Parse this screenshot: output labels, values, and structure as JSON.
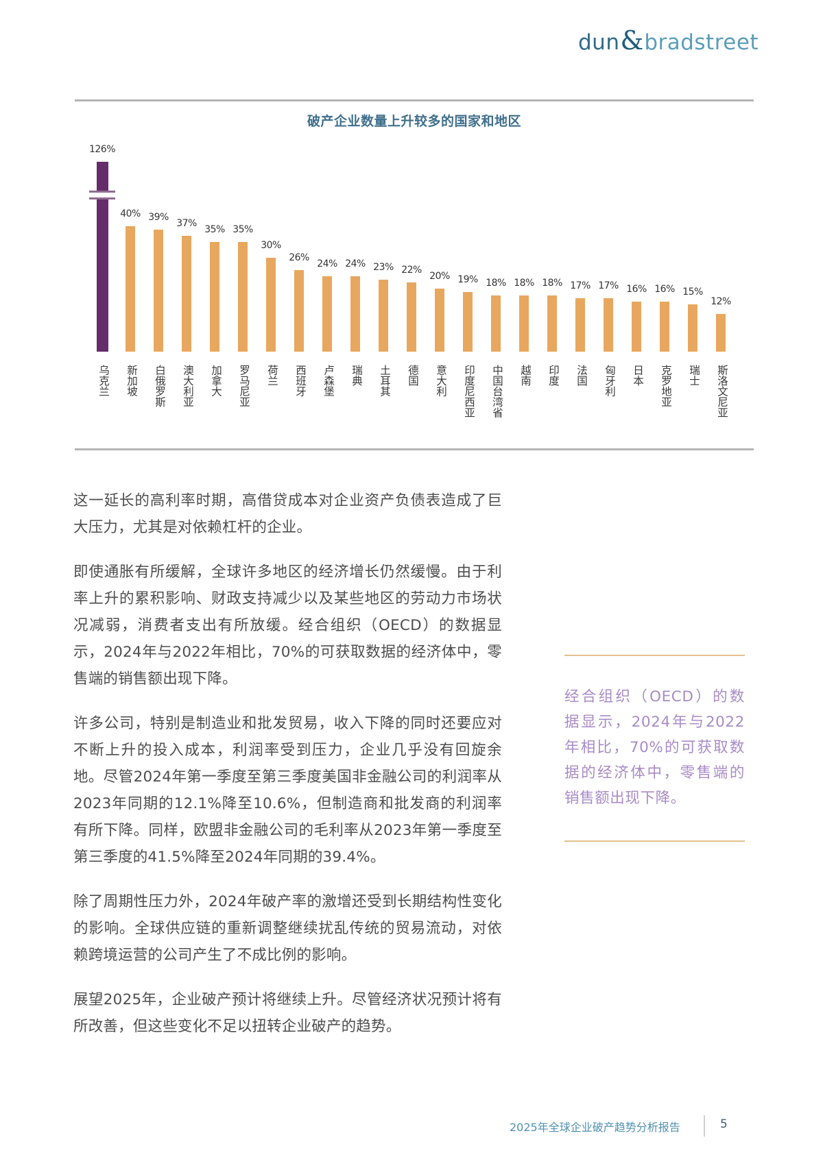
{
  "header": {
    "logo": {
      "part1": "dun",
      "ampersand": "&",
      "part2": "bradstreet"
    }
  },
  "chart_data": {
    "type": "bar",
    "title": "破产企业数量上升较多的国家和地区",
    "xlabel": "",
    "ylabel": "",
    "axis_break": true,
    "grid": false,
    "legend": null,
    "categories": [
      "乌克兰",
      "新加坡",
      "白俄罗斯",
      "澳大利亚",
      "加拿大",
      "罗马尼亚",
      "荷兰",
      "西班牙",
      "卢森堡",
      "瑞典",
      "土耳其",
      "德国",
      "意大利",
      "印度尼西亚",
      "中国台湾省",
      "越南",
      "印度",
      "法国",
      "匈牙利",
      "日本",
      "克罗地亚",
      "瑞士",
      "斯洛文尼亚"
    ],
    "values": [
      126,
      40,
      39,
      37,
      35,
      35,
      30,
      26,
      24,
      24,
      23,
      22,
      20,
      19,
      18,
      18,
      18,
      17,
      17,
      16,
      16,
      15,
      12
    ],
    "value_labels": [
      "126%",
      "40%",
      "39%",
      "37%",
      "35%",
      "35%",
      "30%",
      "26%",
      "24%",
      "24%",
      "23%",
      "22%",
      "20%",
      "19%",
      "18%",
      "18%",
      "18%",
      "17%",
      "17%",
      "16%",
      "16%",
      "15%",
      "12%"
    ],
    "unit": "%",
    "colors": {
      "highlight": "#652d69",
      "default": "#e8a75e"
    },
    "highlight_index": 0
  },
  "body": {
    "paragraphs": [
      "这一延长的高利率时期，高借贷成本对企业资产负债表造成了巨大压力，尤其是对依赖杠杆的企业。",
      "即使通胀有所缓解，全球许多地区的经济增长仍然缓慢。由于利率上升的累积影响、财政支持减少以及某些地区的劳动力市场状况减弱，消费者支出有所放缓。经合组织（OECD）的数据显示，2024年与2022年相比，70%的可获取数据的经济体中，零售端的销售额出现下降。",
      "许多公司，特别是制造业和批发贸易，收入下降的同时还要应对不断上升的投入成本，利润率受到压力，企业几乎没有回旋余地。尽管2024年第一季度至第三季度美国非金融公司的利润率从2023年同期的12.1%降至10.6%，但制造商和批发商的利润率有所下降。同样，欧盟非金融公司的毛利率从2023年第一季度至第三季度的41.5%降至2024年同期的39.4%。",
      "除了周期性压力外，2024年破产率的激增还受到长期结构性变化的影响。全球供应链的重新调整继续扰乱传统的贸易流动，对依赖跨境运营的公司产生了不成比例的影响。",
      "展望2025年，企业破产预计将继续上升。尽管经济状况预计将有所改善，但这些变化不足以扭转企业破产的趋势。"
    ]
  },
  "pull_quote": {
    "text": "经合组织（OECD）的数据显示，2024年与2022年相比，70%的可获取数据的经济体中，零售端的销售额出现下降。",
    "color": "#a88bc6"
  },
  "footer": {
    "title": "2025年全球企业破产趋势分析报告",
    "page_number": "5"
  }
}
